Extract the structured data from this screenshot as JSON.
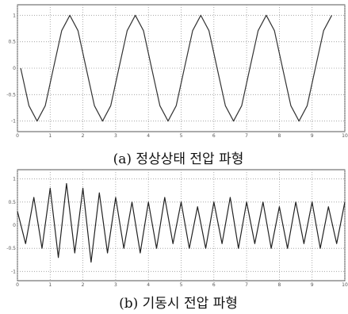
{
  "chart_data": [
    {
      "type": "line",
      "title": "(a) 정상상태 전압 파형",
      "color": "#333333",
      "grid": true,
      "xlim": [
        0,
        10
      ],
      "ylim": [
        -1.2,
        1.2
      ],
      "xticks": [
        0,
        1,
        2,
        3,
        4,
        5,
        6,
        7,
        8,
        9,
        10
      ],
      "yticks": [
        -1,
        -0.5,
        0,
        0.5,
        1
      ],
      "x": [
        0.1,
        0.35,
        0.6,
        0.85,
        1.1,
        1.35,
        1.6,
        1.85,
        2.1,
        2.35,
        2.6,
        2.85,
        3.1,
        3.35,
        3.6,
        3.85,
        4.1,
        4.35,
        4.6,
        4.85,
        5.1,
        5.35,
        5.6,
        5.85,
        6.1,
        6.35,
        6.6,
        6.85,
        7.1,
        7.35,
        7.6,
        7.85,
        8.1,
        8.35,
        8.6,
        8.85,
        9.1,
        9.35,
        9.6
      ],
      "values": [
        0,
        -0.71,
        -1,
        -0.71,
        0,
        0.71,
        1,
        0.71,
        0,
        -0.71,
        -1,
        -0.71,
        0,
        0.71,
        1,
        0.71,
        0,
        -0.71,
        -1,
        -0.71,
        0,
        0.71,
        1,
        0.71,
        0,
        -0.71,
        -1,
        -0.71,
        0,
        0.71,
        1,
        0.71,
        0,
        -0.71,
        -1,
        -0.71,
        0,
        0.71,
        1
      ]
    },
    {
      "type": "line",
      "title": "(b) 기동시 전압 파형",
      "color": "#222222",
      "grid": true,
      "xlim": [
        0,
        10
      ],
      "ylim": [
        -1.2,
        1.2
      ],
      "xticks": [
        0,
        1,
        2,
        3,
        4,
        5,
        6,
        7,
        8,
        9,
        10
      ],
      "yticks": [
        -1,
        -0.5,
        0,
        0.5,
        1
      ],
      "x": [
        0,
        0.25,
        0.5,
        0.75,
        1,
        1.25,
        1.5,
        1.75,
        2,
        2.25,
        2.5,
        2.75,
        3,
        3.25,
        3.5,
        3.75,
        4,
        4.25,
        4.5,
        4.75,
        5,
        5.25,
        5.5,
        5.75,
        6,
        6.25,
        6.5,
        6.75,
        7,
        7.25,
        7.5,
        7.75,
        8,
        8.25,
        8.5,
        8.75,
        9,
        9.25,
        9.5,
        9.75,
        10
      ],
      "values": [
        0.3,
        -0.4,
        0.6,
        -0.5,
        0.8,
        -0.7,
        0.9,
        -0.6,
        0.8,
        -0.8,
        0.7,
        -0.6,
        0.6,
        -0.5,
        0.5,
        -0.6,
        0.5,
        -0.5,
        0.6,
        -0.4,
        0.5,
        -0.5,
        0.4,
        -0.5,
        0.5,
        -0.4,
        0.6,
        -0.5,
        0.5,
        -0.4,
        0.5,
        -0.5,
        0.4,
        -0.5,
        0.5,
        -0.4,
        0.5,
        -0.5,
        0.4,
        -0.4,
        0.5
      ]
    }
  ]
}
